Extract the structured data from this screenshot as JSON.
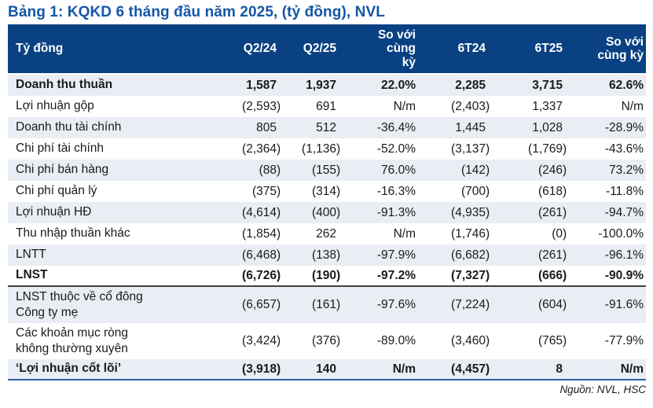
{
  "title": "Bảng 1: KQKD 6 tháng đầu năm 2025, (tỷ đồng), NVL",
  "source": "Nguồn: NVL, HSC",
  "colors": {
    "title": "#1557A7",
    "header_bg": "#0A4183",
    "header_text": "#FFFFFF",
    "row_shade": "#E9EDF4",
    "separator_dark": "#3F3F3F",
    "separator_blue": "#2E5FA5"
  },
  "table": {
    "columns": [
      {
        "label": "Tỷ đồng",
        "type": "label"
      },
      {
        "label": "Q2/24",
        "type": "num"
      },
      {
        "label": "Q2/25",
        "type": "num"
      },
      {
        "label": "So với\ncùng\nkỳ",
        "type": "pct"
      },
      {
        "label": "6T24",
        "type": "num"
      },
      {
        "label": "6T25",
        "type": "num"
      },
      {
        "label": "So với\ncùng kỳ",
        "type": "pct"
      }
    ],
    "rows": [
      {
        "label": "Doanh thu thuần",
        "values": [
          "1,587",
          "1,937",
          "22.0%",
          "2,285",
          "3,715",
          "62.6%"
        ],
        "bold": true,
        "shade": true
      },
      {
        "label": "Lợi nhuận gộp",
        "values": [
          "(2,593)",
          "691",
          "N/m",
          "(2,403)",
          "1,337",
          "N/m"
        ]
      },
      {
        "label": "Doanh thu tài chính",
        "values": [
          "805",
          "512",
          "-36.4%",
          "1,445",
          "1,028",
          "-28.9%"
        ],
        "shade": true
      },
      {
        "label": "Chi phí tài chính",
        "values": [
          "(2,364)",
          "(1,136)",
          "-52.0%",
          "(3,137)",
          "(1,769)",
          "-43.6%"
        ]
      },
      {
        "label": "Chi phí bán hàng",
        "values": [
          "(88)",
          "(155)",
          "76.0%",
          "(142)",
          "(246)",
          "73.2%"
        ],
        "shade": true
      },
      {
        "label": "Chi phí quản lý",
        "values": [
          "(375)",
          "(314)",
          "-16.3%",
          "(700)",
          "(618)",
          "-11.8%"
        ]
      },
      {
        "label": "Lợi nhuận HĐ",
        "values": [
          "(4,614)",
          "(400)",
          "-91.3%",
          "(4,935)",
          "(261)",
          "-94.7%"
        ],
        "shade": true
      },
      {
        "label": "Thu nhập thuần khác",
        "values": [
          "(1,854)",
          "262",
          "N/m",
          "(1,746)",
          "(0)",
          "-100.0%"
        ]
      },
      {
        "label": "LNTT",
        "values": [
          "(6,468)",
          "(138)",
          "-97.9%",
          "(6,682)",
          "(261)",
          "-96.1%"
        ],
        "shade": true
      },
      {
        "label": "LNST",
        "values": [
          "(6,726)",
          "(190)",
          "-97.2%",
          "(7,327)",
          "(666)",
          "-90.9%"
        ],
        "bold": true,
        "sep": "dark"
      },
      {
        "label": "LNST thuộc về cổ đông\nCông ty mẹ",
        "values": [
          "(6,657)",
          "(161)",
          "-97.6%",
          "(7,224)",
          "(604)",
          "-91.6%"
        ],
        "shade": true
      },
      {
        "label": "Các khoản mục ròng\nkhông thường xuyên",
        "values": [
          "(3,424)",
          "(376)",
          "-89.0%",
          "(3,460)",
          "(765)",
          "-77.9%"
        ]
      },
      {
        "label": "‘Lợi nhuận cốt lõi’",
        "values": [
          "(3,918)",
          "140",
          "N/m",
          "(4,457)",
          "8",
          "N/m"
        ],
        "bold": true,
        "shade": true,
        "sep": "blue"
      }
    ]
  }
}
